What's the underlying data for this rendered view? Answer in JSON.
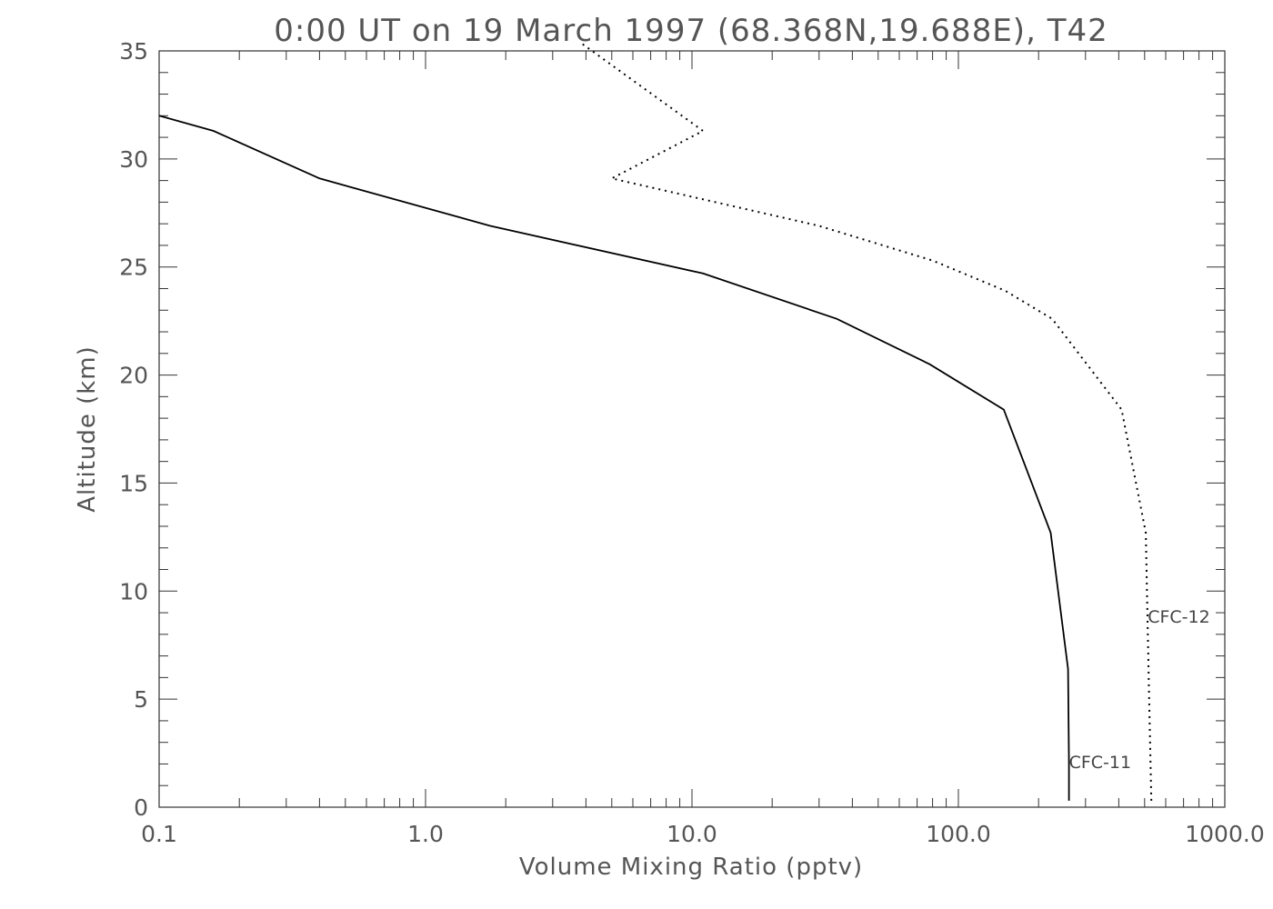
{
  "chart_data": {
    "type": "line",
    "title": "0:00 UT on 19 March 1997 (68.368N,19.688E), T42",
    "xlabel": "Volume Mixing Ratio (pptv)",
    "ylabel": "Altitude (km)",
    "xscale": "log",
    "xlim": [
      0.1,
      1000.0
    ],
    "ylim": [
      0,
      35
    ],
    "x_ticks": [
      {
        "value": 0.1,
        "label": "0.1"
      },
      {
        "value": 1.0,
        "label": "1.0"
      },
      {
        "value": 10.0,
        "label": "10.0"
      },
      {
        "value": 100.0,
        "label": "100.0"
      },
      {
        "value": 1000.0,
        "label": "1000.0"
      }
    ],
    "y_ticks": [
      {
        "value": 0,
        "label": "0"
      },
      {
        "value": 5,
        "label": "5"
      },
      {
        "value": 10,
        "label": "10"
      },
      {
        "value": 15,
        "label": "15"
      },
      {
        "value": 20,
        "label": "20"
      },
      {
        "value": 25,
        "label": "25"
      },
      {
        "value": 30,
        "label": "30"
      },
      {
        "value": 35,
        "label": "35"
      }
    ],
    "grid": false,
    "series": [
      {
        "name": "CFC-11",
        "style": "solid",
        "color": "#000000",
        "x": [
          260,
          260,
          258,
          222,
          148,
          78,
          35,
          11,
          1.75,
          0.4,
          0.16,
          0.1
        ],
        "y": [
          0.3,
          2.1,
          6.4,
          12.7,
          18.4,
          20.5,
          22.6,
          24.7,
          26.9,
          29.1,
          31.3,
          32.0
        ]
      },
      {
        "name": "CFC-12",
        "style": "dotted",
        "color": "#000000",
        "x": [
          530,
          520,
          505,
          410,
          225,
          150,
          80,
          30,
          5.0,
          11.0,
          3.8
        ],
        "y": [
          0.3,
          5.0,
          12.7,
          18.4,
          22.6,
          23.9,
          25.3,
          26.9,
          29.1,
          31.3,
          35.4
        ]
      }
    ]
  }
}
